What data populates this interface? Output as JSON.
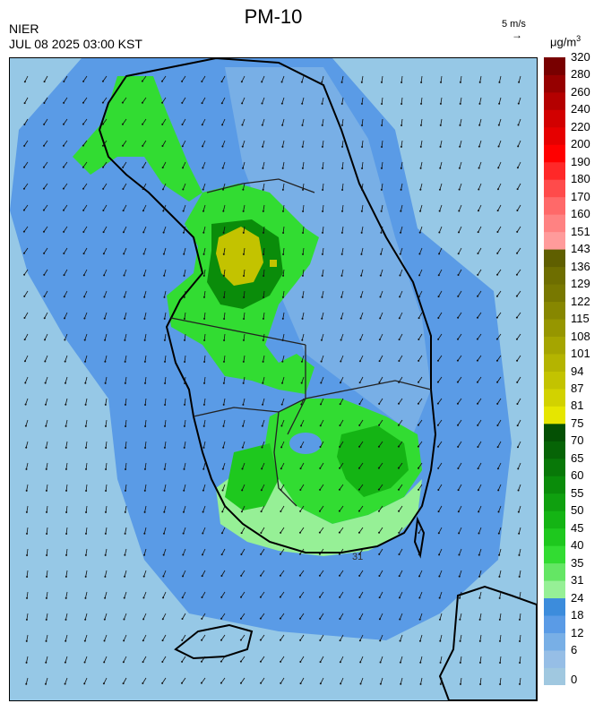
{
  "header": {
    "title": "PM-10",
    "agency": "NIER",
    "datetime": "JUL 08 2025 03:00 KST"
  },
  "wind_scale": {
    "label": "5 m/s",
    "arrow": "→"
  },
  "unit": {
    "base": "μg/m",
    "exponent": "3"
  },
  "legend": {
    "bins": [
      {
        "label": "0",
        "color": "#a0c8e0"
      },
      {
        "label": "6",
        "color": "#96bee6"
      },
      {
        "label": "12",
        "color": "#78afe6"
      },
      {
        "label": "18",
        "color": "#5a9be6"
      },
      {
        "label": "24",
        "color": "#3c8cdc"
      },
      {
        "label": "31",
        "color": "#96f096"
      },
      {
        "label": "35",
        "color": "#64e664"
      },
      {
        "label": "40",
        "color": "#32dc32"
      },
      {
        "label": "45",
        "color": "#1ec81e"
      },
      {
        "label": "50",
        "color": "#14b414"
      },
      {
        "label": "55",
        "color": "#0fa00f"
      },
      {
        "label": "60",
        "color": "#0a8c0a"
      },
      {
        "label": "65",
        "color": "#087808"
      },
      {
        "label": "70",
        "color": "#066406"
      },
      {
        "label": "75",
        "color": "#045004"
      },
      {
        "label": "81",
        "color": "#e6e600"
      },
      {
        "label": "87",
        "color": "#d2d200"
      },
      {
        "label": "94",
        "color": "#c3c300"
      },
      {
        "label": "101",
        "color": "#b4b400"
      },
      {
        "label": "108",
        "color": "#a5a500"
      },
      {
        "label": "115",
        "color": "#969600"
      },
      {
        "label": "122",
        "color": "#878700"
      },
      {
        "label": "129",
        "color": "#787800"
      },
      {
        "label": "136",
        "color": "#6e6e00"
      },
      {
        "label": "143",
        "color": "#5f5f00"
      },
      {
        "label": "151",
        "color": "#ff9b9b"
      },
      {
        "label": "160",
        "color": "#ff8282"
      },
      {
        "label": "170",
        "color": "#ff6969"
      },
      {
        "label": "180",
        "color": "#ff4b4b"
      },
      {
        "label": "190",
        "color": "#ff2828"
      },
      {
        "label": "200",
        "color": "#ff0000"
      },
      {
        "label": "220",
        "color": "#e60000"
      },
      {
        "label": "240",
        "color": "#d20000"
      },
      {
        "label": "260",
        "color": "#b40000"
      },
      {
        "label": "280",
        "color": "#960000"
      },
      {
        "label": "320",
        "color": "#780000"
      }
    ]
  },
  "map": {
    "contour_label": "31",
    "colors": {
      "sea": "#96c8e6",
      "low_blue": "#78afe6",
      "mid_blue": "#5a9be6",
      "light_green": "#96f096",
      "green": "#32dc32",
      "dark_green": "#14b414",
      "darker_green": "#0a8c0a",
      "yellow": "#c3c300",
      "boundary": "#000000"
    }
  }
}
